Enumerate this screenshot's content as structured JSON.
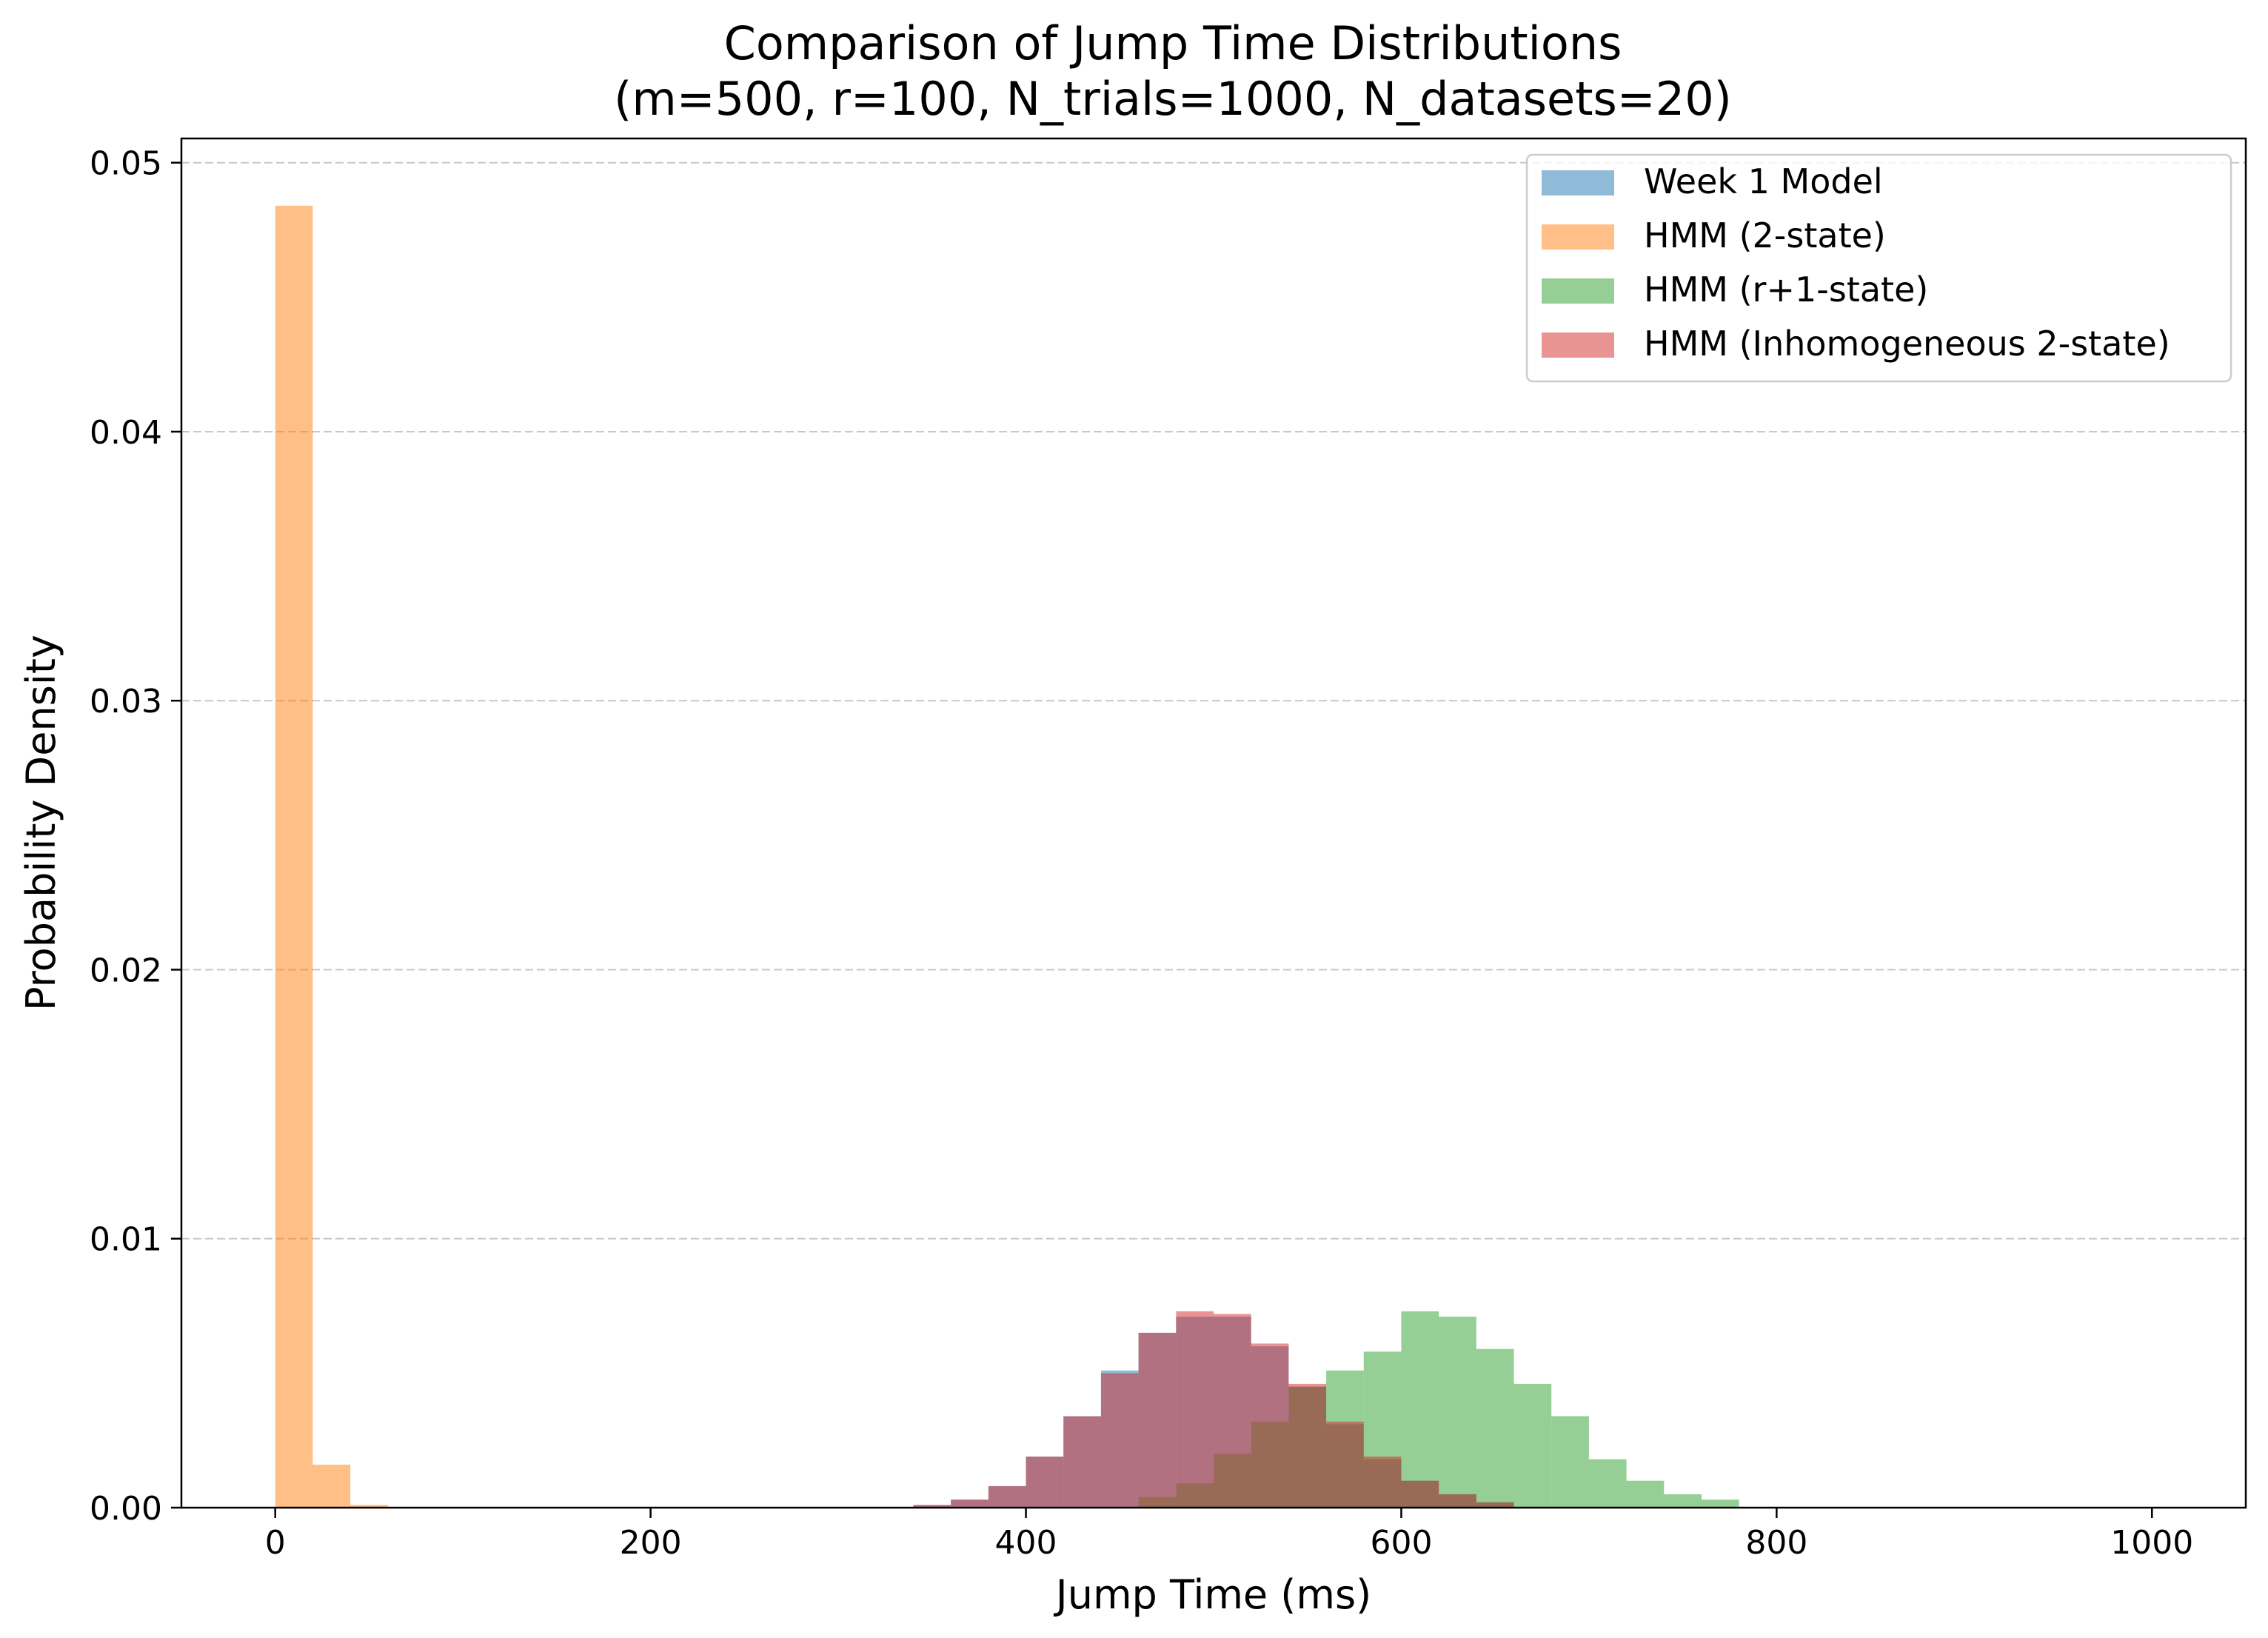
{
  "chart_data": {
    "type": "bar",
    "title": "Comparison of Jump Time Distributions",
    "subtitle": "(m=500, r=100, N_trials=1000, N_datasets=20)",
    "xlabel": "Jump Time (ms)",
    "ylabel": "Probability Density",
    "xlim": [
      -50,
      1050
    ],
    "ylim": [
      0,
      0.0509
    ],
    "xticks": [
      0,
      200,
      400,
      600,
      800,
      1000
    ],
    "yticks": [
      0.0,
      0.01,
      0.02,
      0.03,
      0.04,
      0.05
    ],
    "xtick_labels": [
      "0",
      "200",
      "400",
      "600",
      "800",
      "1000"
    ],
    "ytick_labels": [
      "0.00",
      "0.01",
      "0.02",
      "0.03",
      "0.04",
      "0.05"
    ],
    "grid": "y-dashed",
    "legend_position": "top-right",
    "bin_width": 20,
    "series": [
      {
        "name": "Week 1 Model",
        "color": "#1f77b4",
        "alpha": 0.5,
        "bin_starts": [
          340,
          360,
          380,
          400,
          420,
          440,
          460,
          480,
          500,
          520,
          540,
          560,
          580,
          600,
          620,
          640
        ],
        "values": [
          0.0001,
          0.0003,
          0.0008,
          0.0019,
          0.0034,
          0.0051,
          0.0065,
          0.0071,
          0.0071,
          0.006,
          0.0045,
          0.0031,
          0.0018,
          0.001,
          0.0005,
          0.0002
        ]
      },
      {
        "name": "HMM (2-state)",
        "color": "#ff7f0e",
        "alpha": 0.5,
        "bin_starts": [
          0,
          20,
          40
        ],
        "values": [
          0.0484,
          0.0016,
          0.0001
        ]
      },
      {
        "name": "HMM (r+1-state)",
        "color": "#2ca02c",
        "alpha": 0.5,
        "bin_starts": [
          460,
          480,
          500,
          520,
          540,
          560,
          580,
          600,
          620,
          640,
          660,
          680,
          700,
          720,
          740,
          760
        ],
        "values": [
          0.0004,
          0.0009,
          0.002,
          0.0032,
          0.0045,
          0.0051,
          0.0058,
          0.0073,
          0.0071,
          0.0059,
          0.0046,
          0.0034,
          0.0018,
          0.001,
          0.0005,
          0.0003
        ]
      },
      {
        "name": "HMM (Inhomogeneous 2-state)",
        "color": "#d62728",
        "alpha": 0.5,
        "bin_starts": [
          340,
          360,
          380,
          400,
          420,
          440,
          460,
          480,
          500,
          520,
          540,
          560,
          580,
          600,
          620,
          640
        ],
        "values": [
          0.0001,
          0.0003,
          0.0008,
          0.0019,
          0.0034,
          0.005,
          0.0065,
          0.0073,
          0.0072,
          0.0061,
          0.0046,
          0.0032,
          0.0019,
          0.001,
          0.0005,
          0.0002
        ]
      }
    ]
  }
}
